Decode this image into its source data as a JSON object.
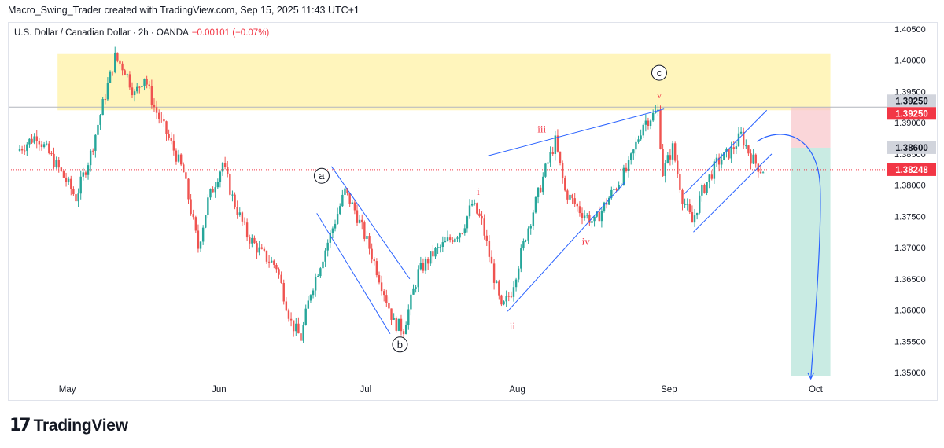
{
  "header": {
    "credit": "Macro_Swing_Trader created with TradingView.com, Sep 15, 2025 11:43 UTC+1"
  },
  "symbol": {
    "name": "U.S. Dollar / Canadian Dollar · 2h · OANDA",
    "change": "−0.00101 (−0.07%)"
  },
  "brand": {
    "logo_icon": "tradingview-logo-icon",
    "name": "TradingView"
  },
  "colors": {
    "up": "#26a69a",
    "down": "#ef5350",
    "zone": "#fff3b0",
    "stop": "#f8c8cc",
    "target": "#b7e4da",
    "line": "#2962ff",
    "wave": "#f23645"
  },
  "chart_data": {
    "type": "candlestick",
    "x_axis": {
      "labels": [
        "May",
        "Jun",
        "Jul",
        "Aug",
        "Sep",
        "Oct"
      ]
    },
    "y_axis": {
      "range": [
        1.349,
        1.406
      ],
      "ticks": [
        "1.40500",
        "1.40000",
        "1.39500",
        "1.39000",
        "1.38500",
        "1.38000",
        "1.37500",
        "1.37000",
        "1.36500",
        "1.36000",
        "1.35500",
        "1.35000"
      ]
    },
    "price_labels": [
      {
        "label": "1.39250",
        "value": 1.3925,
        "style": "grey"
      },
      {
        "label": "1.39250",
        "value": 1.3925,
        "style": "red"
      },
      {
        "label": "1.38600",
        "value": 1.386,
        "style": "grey"
      },
      {
        "label": "1.38248",
        "value": 1.38248,
        "style": "red"
      }
    ],
    "path": [
      [
        "2025-04-21",
        1.3855
      ],
      [
        "2025-04-25",
        1.388
      ],
      [
        "2025-04-30",
        1.382
      ],
      [
        "2025-05-03",
        1.378
      ],
      [
        "2025-05-06",
        1.385
      ],
      [
        "2025-05-09",
        1.3945
      ],
      [
        "2025-05-11",
        1.4005
      ],
      [
        "2025-05-13",
        1.3985
      ],
      [
        "2025-05-15",
        1.3945
      ],
      [
        "2025-05-17",
        1.3975
      ],
      [
        "2025-05-19",
        1.3925
      ],
      [
        "2025-05-22",
        1.3875
      ],
      [
        "2025-05-25",
        1.382
      ],
      [
        "2025-05-28",
        1.37
      ],
      [
        "2025-05-30",
        1.3775
      ],
      [
        "2025-06-02",
        1.3835
      ],
      [
        "2025-06-04",
        1.378
      ],
      [
        "2025-06-07",
        1.372
      ],
      [
        "2025-06-10",
        1.369
      ],
      [
        "2025-06-13",
        1.367
      ],
      [
        "2025-06-16",
        1.358
      ],
      [
        "2025-06-18",
        1.3555
      ],
      [
        "2025-06-20",
        1.363
      ],
      [
        "2025-06-24",
        1.372
      ],
      [
        "2025-06-27",
        1.379
      ],
      [
        "2025-06-29",
        1.376
      ],
      [
        "2025-07-02",
        1.37
      ],
      [
        "2025-07-05",
        1.363
      ],
      [
        "2025-07-07",
        1.358
      ],
      [
        "2025-07-09",
        1.357
      ],
      [
        "2025-07-12",
        1.366
      ],
      [
        "2025-07-15",
        1.369
      ],
      [
        "2025-07-18",
        1.371
      ],
      [
        "2025-07-21",
        1.373
      ],
      [
        "2025-07-23",
        1.377
      ],
      [
        "2025-07-25",
        1.374
      ],
      [
        "2025-07-27",
        1.367
      ],
      [
        "2025-07-29",
        1.36
      ],
      [
        "2025-07-31",
        1.363
      ],
      [
        "2025-08-03",
        1.372
      ],
      [
        "2025-08-07",
        1.3825
      ],
      [
        "2025-08-09",
        1.387
      ],
      [
        "2025-08-11",
        1.379
      ],
      [
        "2025-08-14",
        1.376
      ],
      [
        "2025-08-17",
        1.374
      ],
      [
        "2025-08-20",
        1.378
      ],
      [
        "2025-08-24",
        1.383
      ],
      [
        "2025-08-27",
        1.39
      ],
      [
        "2025-08-30",
        1.3918
      ],
      [
        "2025-08-31",
        1.382
      ],
      [
        "2025-09-02",
        1.386
      ],
      [
        "2025-09-04",
        1.378
      ],
      [
        "2025-09-06",
        1.374
      ],
      [
        "2025-09-08",
        1.379
      ],
      [
        "2025-09-11",
        1.3835
      ],
      [
        "2025-09-14",
        1.3855
      ],
      [
        "2025-09-16",
        1.388
      ],
      [
        "2025-09-18",
        1.3845
      ],
      [
        "2025-09-20",
        1.3825
      ]
    ],
    "zones": [
      {
        "name": "resistance-zone",
        "from": "2025-04-29",
        "to": "2025-10-04",
        "top": 1.401,
        "bottom": 1.392
      },
      {
        "name": "stop-zone",
        "from": "2025-09-26",
        "to": "2025-10-04",
        "top": 1.3925,
        "bottom": 1.386
      },
      {
        "name": "target-zone",
        "from": "2025-09-26",
        "to": "2025-10-04",
        "top": 1.386,
        "bottom": 1.3495
      }
    ],
    "trendlines": [
      {
        "from": [
          "2025-06-21",
          1.3755
        ],
        "to": [
          "2025-07-06",
          1.3562
        ]
      },
      {
        "from": [
          "2025-06-24",
          1.383
        ],
        "to": [
          "2025-07-10",
          1.365
        ]
      },
      {
        "from": [
          "2025-07-30",
          1.3598
        ],
        "to": [
          "2025-08-23",
          1.3805
        ]
      },
      {
        "from": [
          "2025-07-26",
          1.3847
        ],
        "to": [
          "2025-08-31",
          1.3922
        ]
      },
      {
        "from": [
          "2025-09-06",
          1.3725
        ],
        "to": [
          "2025-09-22",
          1.385
        ]
      },
      {
        "from": [
          "2025-09-04",
          1.3785
        ],
        "to": [
          "2025-09-21",
          1.392
        ]
      }
    ],
    "wave_labels": [
      {
        "text": "a",
        "x": "2025-06-22",
        "y": 1.3815,
        "circled": true
      },
      {
        "text": "b",
        "x": "2025-07-08",
        "y": 1.3545,
        "circled": true
      },
      {
        "text": "c",
        "x": "2025-08-30",
        "y": 1.398,
        "circled": true
      },
      {
        "text": "i",
        "x": "2025-07-24",
        "y": 1.379,
        "circled": false
      },
      {
        "text": "ii",
        "x": "2025-07-31",
        "y": 1.3575,
        "circled": false
      },
      {
        "text": "iii",
        "x": "2025-08-06",
        "y": 1.389,
        "circled": false
      },
      {
        "text": "iv",
        "x": "2025-08-15",
        "y": 1.371,
        "circled": false
      },
      {
        "text": "v",
        "x": "2025-08-30",
        "y": 1.3945,
        "circled": false
      }
    ],
    "projection_arrow": {
      "from": [
        "2025-09-19",
        1.387
      ],
      "to": [
        "2025-09-30",
        1.349
      ]
    },
    "dotted_line": 1.38248,
    "grey_line": 1.3925
  }
}
